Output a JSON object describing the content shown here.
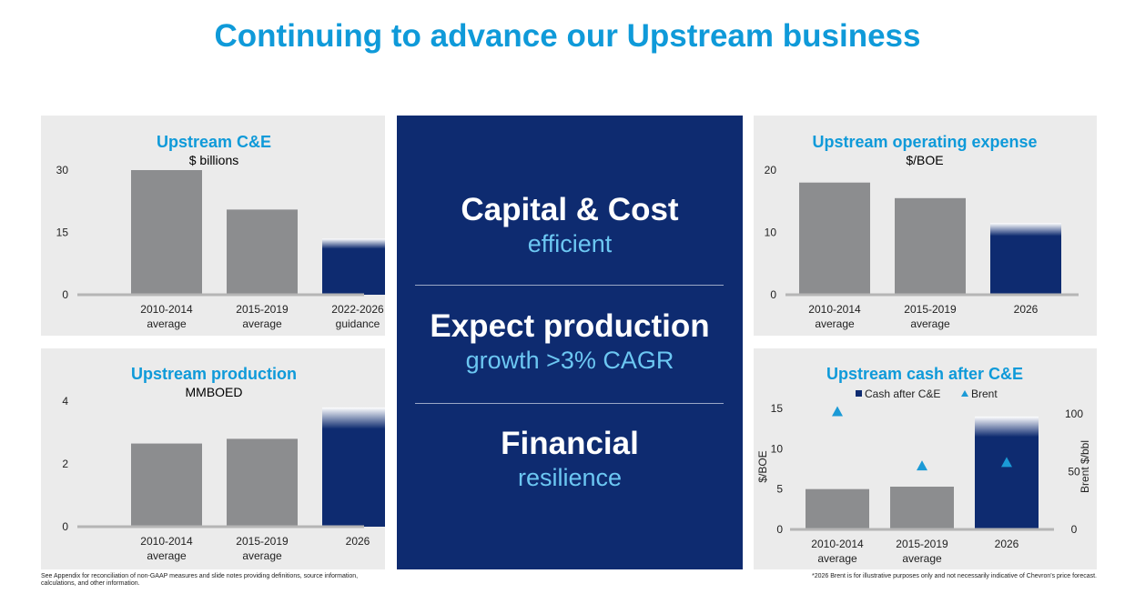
{
  "page": {
    "title": "Continuing to advance our Upstream business",
    "footnote_left": "See Appendix for reconciliation of non-GAAP measures and slide notes providing definitions, source information, calculations, and other information.",
    "footnote_right": "*2026 Brent is for illustrative purposes only and not necessarily indicative of Chevron's price forecast."
  },
  "colors": {
    "accent": "#0f9ad9",
    "gray_bar": "#8c8d8f",
    "navy": "#0e2b70",
    "panel_bg": "#ebebeb",
    "light_blue_text": "#6cc7f2",
    "triangle": "#1b9ad6"
  },
  "center": {
    "blocks": [
      {
        "heading": "Capital & Cost",
        "sub": "efficient"
      },
      {
        "heading": "Expect production",
        "sub": "growth >3% CAGR"
      },
      {
        "heading": "Financial",
        "sub": "resilience"
      }
    ]
  },
  "chart_data": [
    {
      "id": "ce",
      "type": "bar",
      "title": "Upstream C&E",
      "subtitle": "$ billions",
      "categories": [
        "2010-2014\naverage",
        "2015-2019\naverage",
        "2022-2026\nguidance"
      ],
      "values": [
        30,
        20.5,
        13.5
      ],
      "highlight": [
        false,
        false,
        true
      ],
      "yticks": [
        0,
        15,
        30
      ],
      "ylim": [
        0,
        30
      ]
    },
    {
      "id": "opex",
      "type": "bar",
      "title": "Upstream operating expense",
      "subtitle": "$/BOE",
      "categories": [
        "2010-2014\naverage",
        "2015-2019\naverage",
        "2026"
      ],
      "values": [
        18,
        15.5,
        11.5
      ],
      "highlight": [
        false,
        false,
        true
      ],
      "yticks": [
        0,
        10,
        20
      ],
      "ylim": [
        0,
        20
      ]
    },
    {
      "id": "prod",
      "type": "bar",
      "title": "Upstream production",
      "subtitle": "MMBOED",
      "categories": [
        "2010-2014\naverage",
        "2015-2019\naverage",
        "2026"
      ],
      "values": [
        2.65,
        2.8,
        3.8
      ],
      "highlight": [
        false,
        false,
        true
      ],
      "yticks": [
        0,
        2,
        4
      ],
      "ylim": [
        0,
        4
      ]
    },
    {
      "id": "cash",
      "type": "bar",
      "title": "Upstream cash after C&E",
      "categories": [
        "2010-2014\naverage",
        "2015-2019\naverage",
        "2026"
      ],
      "values": [
        5,
        5.3,
        14
      ],
      "highlight": [
        false,
        false,
        true
      ],
      "ylabel": "$/BOE",
      "y2label": "Brent $/bbl",
      "yticks": [
        0,
        5,
        10,
        15
      ],
      "ylim": [
        0,
        15
      ],
      "y2ticks": [
        0,
        50,
        100
      ],
      "y2lim": [
        0,
        100
      ],
      "series": [
        {
          "name": "Cash after C&E",
          "type": "bar",
          "values": [
            5,
            5.3,
            14
          ]
        },
        {
          "name": "Brent",
          "type": "scatter",
          "marker": "triangle",
          "values": [
            102,
            55,
            58
          ]
        }
      ]
    }
  ]
}
